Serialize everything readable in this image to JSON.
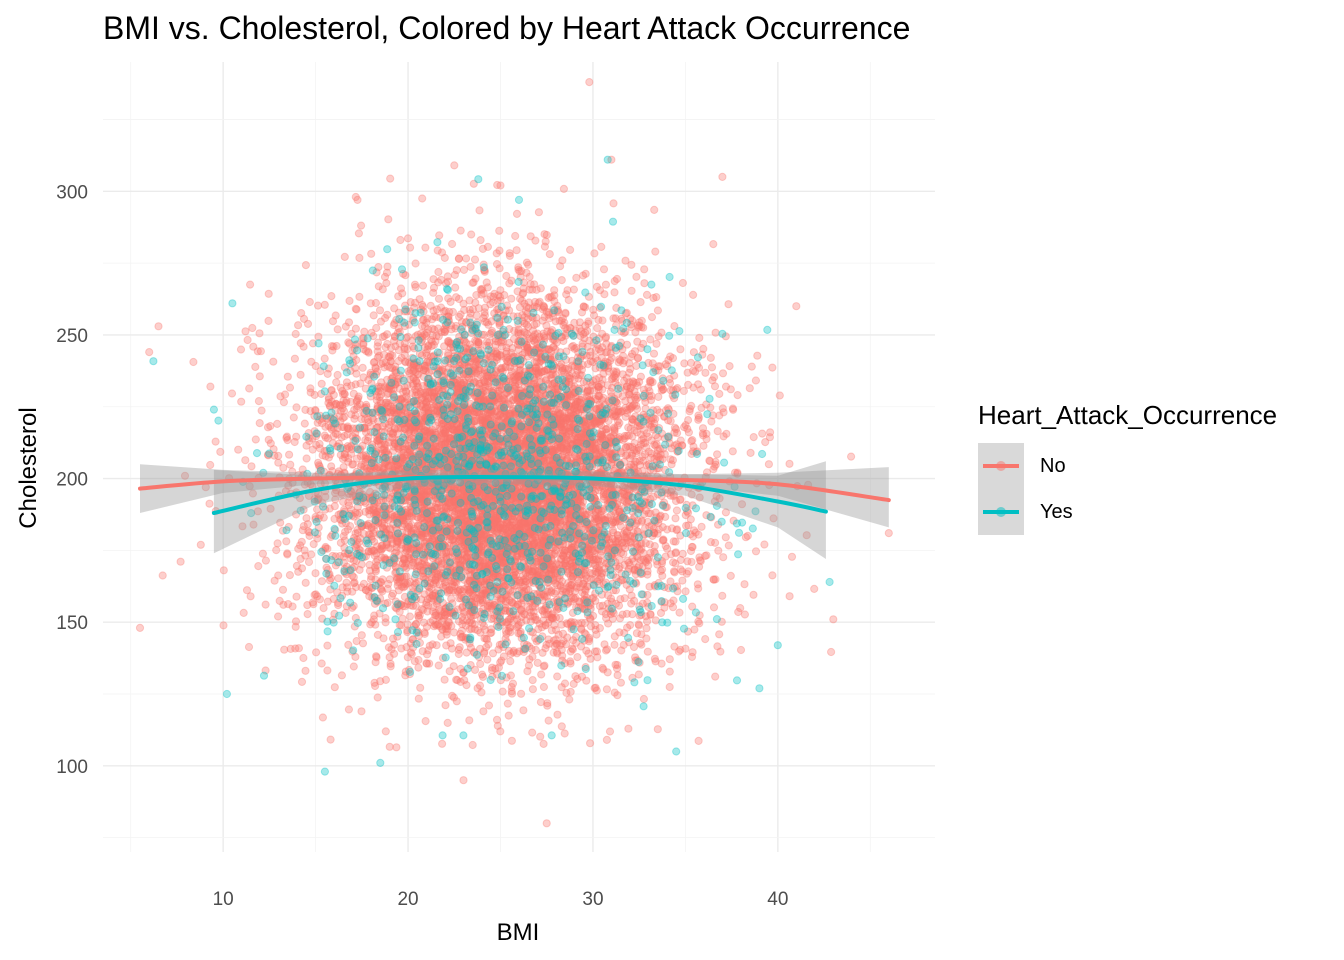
{
  "chart_data": {
    "type": "scatter",
    "title": "BMI vs. Cholesterol, Colored by Heart Attack Occurrence",
    "xlabel": "BMI",
    "ylabel": "Cholesterol",
    "xlim": [
      3.5,
      48.5
    ],
    "ylim": [
      70,
      345
    ],
    "x_ticks": [
      10,
      20,
      30,
      40
    ],
    "y_ticks": [
      100,
      150,
      200,
      250,
      300
    ],
    "grid": true,
    "legend": {
      "title": "Heart_Attack_Occurrence",
      "placement": "right",
      "entries": [
        {
          "label": "No",
          "color": "#F8766D"
        },
        {
          "label": "Yes",
          "color": "#00BFC4"
        }
      ]
    },
    "series": [
      {
        "name": "No",
        "color": "#F8766D",
        "point_count": 9000,
        "x_mean": 25,
        "x_sd": 5,
        "y_mean": 200,
        "y_sd": 30,
        "sample_points": [
          [
            5.5,
            148
          ],
          [
            6,
            244
          ],
          [
            6.5,
            253
          ],
          [
            29.8,
            338
          ],
          [
            31,
            311
          ],
          [
            46,
            181
          ],
          [
            43,
            151
          ],
          [
            25,
            302
          ],
          [
            22.5,
            309
          ],
          [
            27.5,
            80
          ],
          [
            23,
            95
          ],
          [
            37,
            305
          ],
          [
            41,
            260
          ]
        ],
        "smooth": [
          [
            5.5,
            196.5
          ],
          [
            10,
            199
          ],
          [
            15,
            200
          ],
          [
            20,
            200.5
          ],
          [
            25,
            200.5
          ],
          [
            30,
            200
          ],
          [
            35,
            199.5
          ],
          [
            40,
            198
          ],
          [
            46,
            192.5
          ]
        ],
        "smooth_band": [
          [
            5.5,
            188,
            205
          ],
          [
            10,
            195,
            203
          ],
          [
            15,
            198,
            202
          ],
          [
            20,
            199,
            202
          ],
          [
            25,
            199.5,
            201.5
          ],
          [
            30,
            199,
            201
          ],
          [
            35,
            197.5,
            201.5
          ],
          [
            40,
            194,
            202
          ],
          [
            46,
            183,
            204
          ]
        ]
      },
      {
        "name": "Yes",
        "color": "#00BFC4",
        "point_count": 900,
        "x_mean": 25,
        "x_sd": 5,
        "y_mean": 200,
        "y_sd": 30,
        "sample_points": [
          [
            10.5,
            261
          ],
          [
            10.2,
            125
          ],
          [
            15.5,
            98
          ],
          [
            18.5,
            101
          ],
          [
            26,
            297
          ],
          [
            30.8,
            311
          ],
          [
            42.8,
            164
          ],
          [
            40,
            142
          ],
          [
            39,
            127
          ],
          [
            34.5,
            105
          ],
          [
            9.5,
            224
          ]
        ],
        "smooth": [
          [
            9.5,
            188
          ],
          [
            15,
            196
          ],
          [
            20,
            200
          ],
          [
            25,
            200.5
          ],
          [
            30,
            200
          ],
          [
            35,
            197.5
          ],
          [
            40,
            192
          ],
          [
            42.6,
            188.5
          ]
        ],
        "smooth_band": [
          [
            9.5,
            174,
            203
          ],
          [
            15,
            191,
            201
          ],
          [
            20,
            197,
            203
          ],
          [
            25,
            198,
            203
          ],
          [
            30,
            197.5,
            202.5
          ],
          [
            35,
            194,
            201.5
          ],
          [
            40,
            183,
            201
          ],
          [
            42.6,
            172,
            206
          ]
        ]
      }
    ]
  }
}
